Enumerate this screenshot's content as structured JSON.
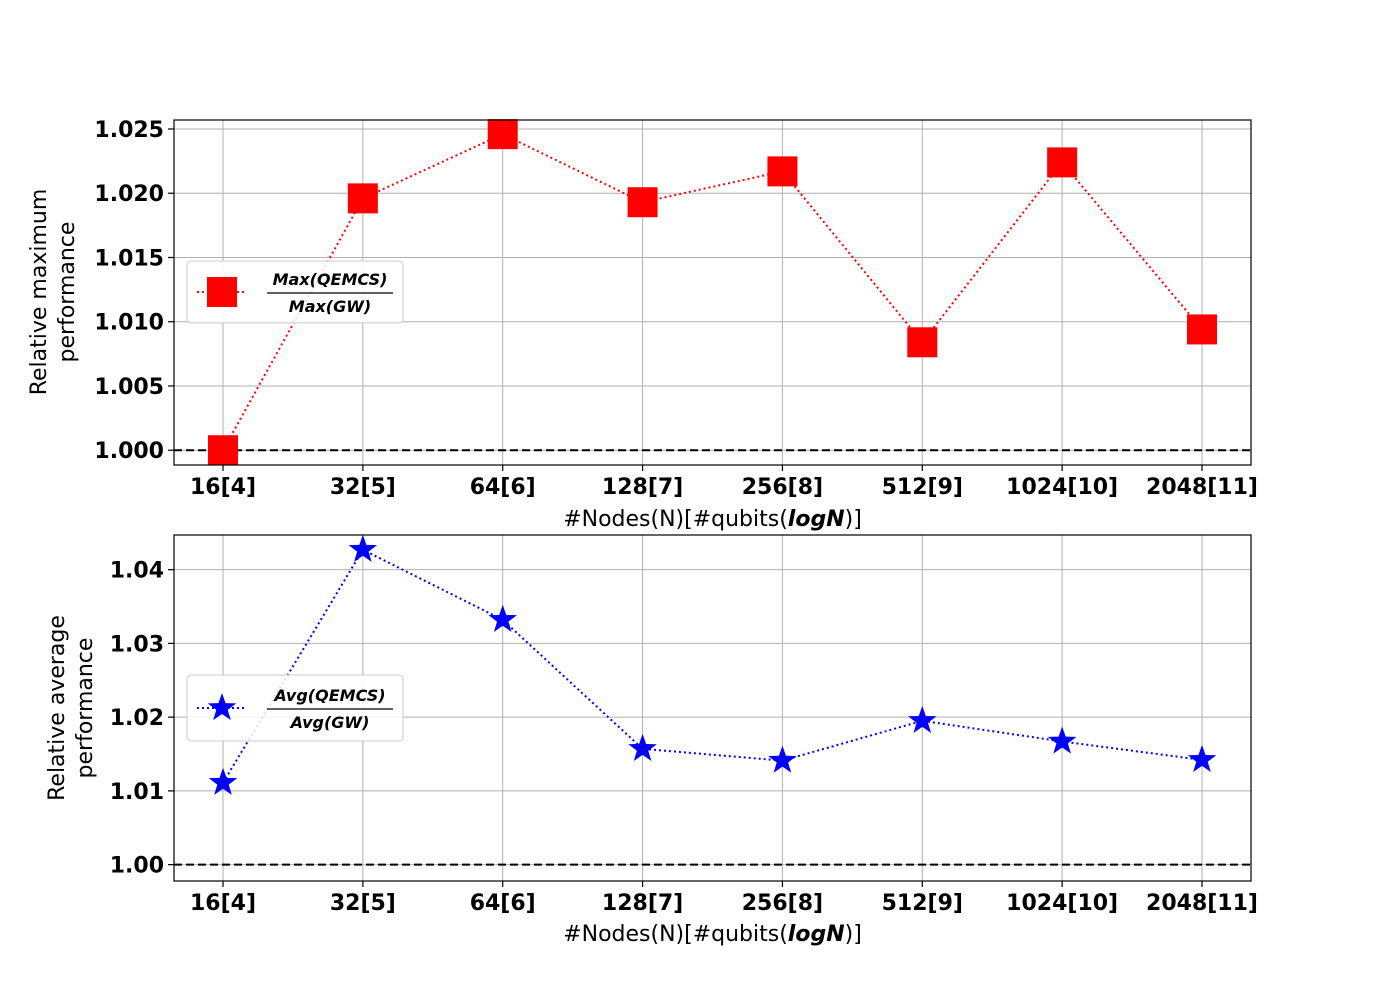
{
  "chart_data": [
    {
      "type": "line",
      "categories": [
        "16[4]",
        "32[5]",
        "64[6]",
        "128[7]",
        "256[8]",
        "512[9]",
        "1024[10]",
        "2048[11]"
      ],
      "series": [
        {
          "values": [
            1.0,
            1.0196,
            1.0246,
            1.0193,
            1.0217,
            1.0084,
            1.0224,
            1.0094
          ],
          "color": "#ff0000",
          "marker": "square",
          "line_style": "dotted"
        }
      ],
      "legend": {
        "numerator": "Max(QEMCS)",
        "denominator": "Max(GW)",
        "placement": "center-left"
      },
      "reference_line": {
        "y": 1.0,
        "style": "dashed",
        "color": "#000000"
      },
      "xlabel": {
        "prefix": "#Nodes(N)[#qubits(",
        "emph": "logN",
        "suffix": ")]"
      },
      "ylabel": [
        "Relative maximum",
        "performance"
      ],
      "yticks": [
        1.0,
        1.005,
        1.01,
        1.015,
        1.02,
        1.025
      ],
      "ytick_labels": [
        "1.000",
        "1.005",
        "1.010",
        "1.015",
        "1.020",
        "1.025"
      ],
      "ylim": [
        0.99885,
        1.0257
      ],
      "grid": true
    },
    {
      "type": "line",
      "categories": [
        "16[4]",
        "32[5]",
        "64[6]",
        "128[7]",
        "256[8]",
        "512[9]",
        "1024[10]",
        "2048[11]"
      ],
      "series": [
        {
          "values": [
            1.0111,
            1.0427,
            1.0332,
            1.0157,
            1.0141,
            1.0195,
            1.0167,
            1.0142
          ],
          "color": "#0000ff",
          "marker": "star",
          "line_style": "dotted"
        }
      ],
      "legend": {
        "numerator": "Avg(QEMCS)",
        "denominator": "Avg(GW)",
        "placement": "center-left"
      },
      "reference_line": {
        "y": 1.0,
        "style": "dashed",
        "color": "#000000"
      },
      "xlabel": {
        "prefix": "#Nodes(N)[#qubits(",
        "emph": "logN",
        "suffix": ")]"
      },
      "ylabel": [
        "Relative average",
        "performance"
      ],
      "yticks": [
        1.0,
        1.01,
        1.02,
        1.03,
        1.04
      ],
      "ytick_labels": [
        "1.00",
        "1.01",
        "1.02",
        "1.03",
        "1.04"
      ],
      "ylim": [
        0.99778,
        1.0447
      ],
      "grid": true
    }
  ]
}
